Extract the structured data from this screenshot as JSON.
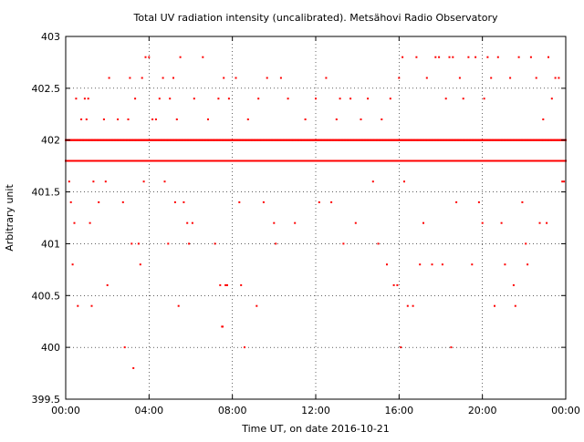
{
  "chart_data": {
    "type": "scatter",
    "title": "Total UV radiation intensity (uncalibrated). Metsähovi Radio Observatory",
    "xlabel": "Time UT, on date 2016-10-21",
    "ylabel": "Arbitrary unit",
    "xlim": [
      "00:00",
      "24:00"
    ],
    "ylim": [
      399.5,
      403
    ],
    "x_ticks": [
      "00:00",
      "04:00",
      "08:00",
      "12:00",
      "16:00",
      "20:00",
      "00:00"
    ],
    "y_ticks": [
      "399.5",
      "400",
      "400.5",
      "401",
      "401.5",
      "402",
      "402.5",
      "403"
    ],
    "grid": true,
    "marker_color": "#ff0000",
    "series": [
      {
        "values_dense": [
          401.8,
          402.0
        ],
        "points": [
          [
            "00:10",
            401.6
          ],
          [
            "00:15",
            401.4
          ],
          [
            "00:25",
            401.2
          ],
          [
            "00:20",
            400.8
          ],
          [
            "00:35",
            400.4
          ],
          [
            "00:30",
            402.4
          ],
          [
            "00:45",
            402.2
          ],
          [
            "00:55",
            402.4
          ],
          [
            "01:00",
            402.2
          ],
          [
            "01:05",
            402.4
          ],
          [
            "01:10",
            401.2
          ],
          [
            "01:15",
            400.4
          ],
          [
            "01:20",
            401.6
          ],
          [
            "01:35",
            401.4
          ],
          [
            "01:50",
            402.2
          ],
          [
            "01:55",
            401.6
          ],
          [
            "02:00",
            400.6
          ],
          [
            "02:05",
            402.6
          ],
          [
            "02:30",
            402.2
          ],
          [
            "02:45",
            401.4
          ],
          [
            "02:50",
            400.0
          ],
          [
            "03:00",
            402.2
          ],
          [
            "03:05",
            402.6
          ],
          [
            "03:10",
            401.0
          ],
          [
            "03:15",
            399.8
          ],
          [
            "03:20",
            402.4
          ],
          [
            "03:30",
            401.0
          ],
          [
            "03:35",
            400.8
          ],
          [
            "03:40",
            402.6
          ],
          [
            "03:45",
            401.6
          ],
          [
            "03:50",
            402.8
          ],
          [
            "04:00",
            402.8
          ],
          [
            "04:10",
            402.2
          ],
          [
            "04:20",
            402.2
          ],
          [
            "04:30",
            402.4
          ],
          [
            "04:40",
            402.6
          ],
          [
            "04:45",
            401.6
          ],
          [
            "04:55",
            401.0
          ],
          [
            "05:00",
            402.4
          ],
          [
            "05:10",
            402.6
          ],
          [
            "05:15",
            401.4
          ],
          [
            "05:20",
            402.2
          ],
          [
            "05:25",
            400.4
          ],
          [
            "05:30",
            402.8
          ],
          [
            "05:40",
            401.4
          ],
          [
            "05:50",
            401.2
          ],
          [
            "05:55",
            401.0
          ],
          [
            "06:05",
            401.2
          ],
          [
            "06:10",
            402.4
          ],
          [
            "06:35",
            402.8
          ],
          [
            "06:50",
            402.2
          ],
          [
            "07:10",
            401.0
          ],
          [
            "07:20",
            402.4
          ],
          [
            "07:25",
            400.6
          ],
          [
            "07:30",
            400.2
          ],
          [
            "07:32",
            400.2
          ],
          [
            "07:35",
            402.6
          ],
          [
            "07:40",
            400.6
          ],
          [
            "07:45",
            400.6
          ],
          [
            "07:50",
            402.4
          ],
          [
            "08:10",
            402.6
          ],
          [
            "08:20",
            401.4
          ],
          [
            "08:25",
            400.6
          ],
          [
            "08:35",
            400.0
          ],
          [
            "08:45",
            402.2
          ],
          [
            "09:10",
            400.4
          ],
          [
            "09:15",
            402.4
          ],
          [
            "09:30",
            401.4
          ],
          [
            "09:40",
            402.6
          ],
          [
            "10:00",
            401.2
          ],
          [
            "10:05",
            401.0
          ],
          [
            "10:20",
            402.6
          ],
          [
            "10:40",
            402.4
          ],
          [
            "11:00",
            401.2
          ],
          [
            "11:30",
            402.2
          ],
          [
            "12:00",
            402.4
          ],
          [
            "12:10",
            401.4
          ],
          [
            "12:30",
            402.6
          ],
          [
            "12:45",
            401.4
          ],
          [
            "13:00",
            402.2
          ],
          [
            "13:10",
            402.4
          ],
          [
            "13:20",
            401.0
          ],
          [
            "13:40",
            402.4
          ],
          [
            "13:55",
            401.2
          ],
          [
            "14:10",
            402.2
          ],
          [
            "14:30",
            402.4
          ],
          [
            "14:45",
            401.6
          ],
          [
            "15:00",
            401.0
          ],
          [
            "15:10",
            402.2
          ],
          [
            "15:25",
            400.8
          ],
          [
            "15:35",
            402.4
          ],
          [
            "15:45",
            400.6
          ],
          [
            "15:55",
            400.6
          ],
          [
            "16:00",
            402.6
          ],
          [
            "16:05",
            400.0
          ],
          [
            "16:10",
            402.8
          ],
          [
            "16:15",
            401.6
          ],
          [
            "16:25",
            400.4
          ],
          [
            "16:40",
            400.4
          ],
          [
            "16:50",
            402.8
          ],
          [
            "17:00",
            400.8
          ],
          [
            "17:10",
            401.2
          ],
          [
            "17:20",
            402.6
          ],
          [
            "17:35",
            400.8
          ],
          [
            "17:45",
            402.8
          ],
          [
            "17:55",
            402.8
          ],
          [
            "18:05",
            400.8
          ],
          [
            "18:15",
            402.4
          ],
          [
            "18:25",
            402.8
          ],
          [
            "18:30",
            400.0
          ],
          [
            "18:35",
            402.8
          ],
          [
            "18:45",
            401.4
          ],
          [
            "18:55",
            402.6
          ],
          [
            "19:05",
            402.4
          ],
          [
            "19:20",
            402.8
          ],
          [
            "19:30",
            400.8
          ],
          [
            "19:40",
            402.8
          ],
          [
            "19:50",
            401.4
          ],
          [
            "20:00",
            401.2
          ],
          [
            "20:05",
            402.4
          ],
          [
            "20:15",
            402.8
          ],
          [
            "20:25",
            402.6
          ],
          [
            "20:35",
            400.4
          ],
          [
            "20:45",
            402.8
          ],
          [
            "20:55",
            401.2
          ],
          [
            "21:05",
            400.8
          ],
          [
            "21:20",
            402.6
          ],
          [
            "21:30",
            400.6
          ],
          [
            "21:35",
            400.4
          ],
          [
            "21:45",
            402.8
          ],
          [
            "21:55",
            401.4
          ],
          [
            "22:05",
            401.0
          ],
          [
            "22:10",
            400.8
          ],
          [
            "22:20",
            402.8
          ],
          [
            "22:35",
            402.6
          ],
          [
            "22:45",
            401.2
          ],
          [
            "22:55",
            402.2
          ],
          [
            "23:05",
            401.2
          ],
          [
            "23:10",
            402.8
          ],
          [
            "23:20",
            402.4
          ],
          [
            "23:30",
            402.6
          ],
          [
            "23:40",
            402.6
          ],
          [
            "23:50",
            401.6
          ],
          [
            "23:55",
            401.6
          ]
        ]
      }
    ]
  }
}
